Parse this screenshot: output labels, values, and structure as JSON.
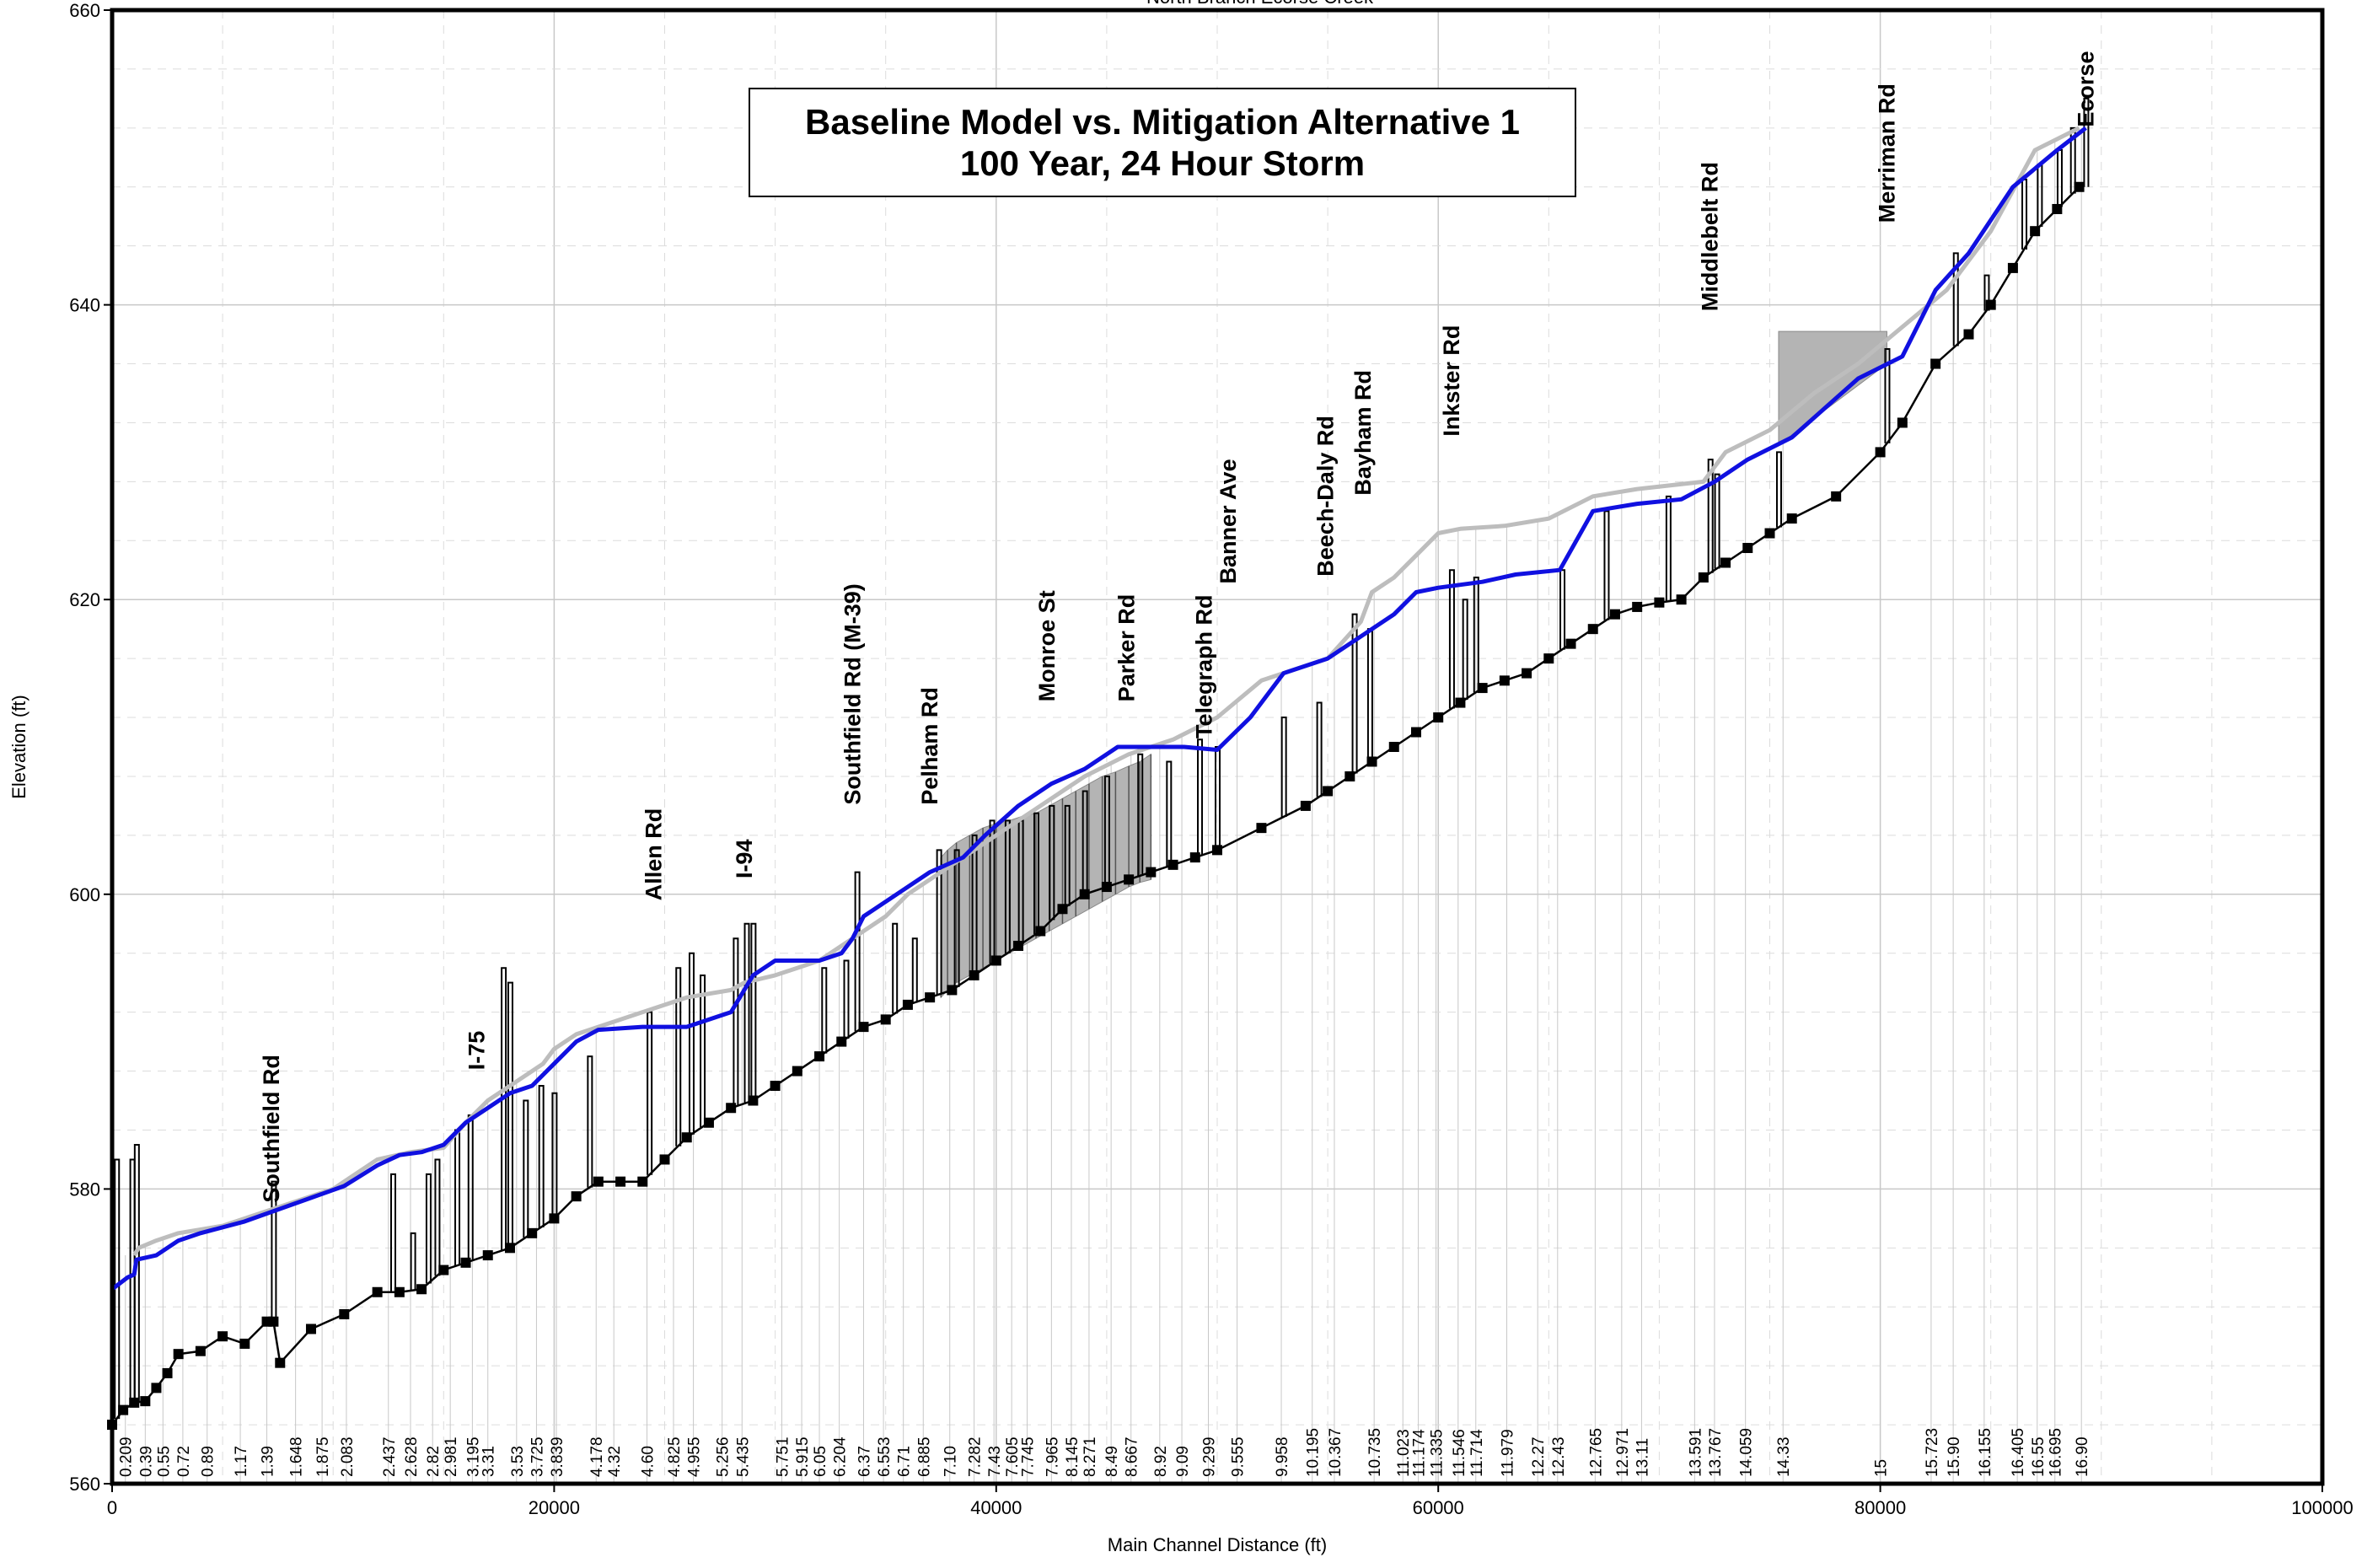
{
  "chart_data": {
    "type": "line",
    "cut_title": "North Branch Ecorse Creek",
    "title_lines": [
      "Baseline Model vs. Mitigation Alternative 1",
      "100 Year, 24 Hour Storm"
    ],
    "xlabel": "Main Channel Distance (ft)",
    "ylabel": "Elevation (ft)",
    "xlim": [
      0,
      100000
    ],
    "ylim": [
      560,
      660
    ],
    "x_ticks": [
      "0",
      "20000",
      "40000",
      "60000",
      "80000",
      "100000"
    ],
    "y_ticks": [
      "560",
      "580",
      "600",
      "620",
      "640",
      "660"
    ],
    "grid": true,
    "colors": {
      "baseline": "#bdbdbd",
      "mitigation": "#1010e0",
      "invert": "#000000",
      "fill": "#b4b4b4"
    },
    "series": [
      {
        "key": "baseline",
        "x": [
          1000,
          1200,
          2000,
          3000,
          5000,
          7000,
          8000,
          10000,
          12000,
          13500,
          15000,
          16000,
          17000,
          18500,
          19500,
          20000,
          21000,
          22000,
          24000,
          26000,
          28000,
          28600,
          30000,
          31000,
          32000,
          33500,
          35000,
          36000,
          37500,
          39000,
          40500,
          42000,
          44000,
          46000,
          48000,
          50000,
          52000,
          54000,
          55000,
          56500,
          57000,
          58000,
          59000,
          60000,
          61000,
          63000,
          65000,
          67000,
          69000,
          72000,
          73000,
          75000,
          77000,
          79000,
          81000,
          83000,
          85000,
          87000,
          89000
        ],
        "y": [
          575.5,
          576,
          576.5,
          577,
          577.5,
          578.5,
          579,
          580,
          582,
          582.5,
          582.8,
          584.5,
          586,
          587.5,
          588.5,
          589.5,
          590.5,
          591,
          592,
          593,
          593.5,
          594,
          594.5,
          595,
          595.5,
          597,
          598.5,
          600,
          601.5,
          603,
          604.5,
          606,
          608,
          609.5,
          610.5,
          612,
          614.5,
          615.5,
          616,
          618.5,
          620.5,
          621.5,
          623,
          624.5,
          624.8,
          625,
          625.5,
          627,
          627.5,
          628,
          630,
          631.5,
          634,
          636,
          638.5,
          641,
          645,
          650.5,
          652
        ]
      },
      {
        "key": "mitigation",
        "x": [
          0,
          700,
          1000,
          1100,
          2000,
          3000,
          4000,
          6000,
          7500,
          9000,
          10500,
          12000,
          13000,
          14000,
          15000,
          16000,
          17000,
          18000,
          19000,
          20000,
          21000,
          22000,
          24000,
          26000,
          28000,
          29000,
          30000,
          31000,
          32000,
          33000,
          33500,
          34000,
          34500,
          35500,
          37000,
          38500,
          39500,
          41000,
          42500,
          44000,
          45500,
          47000,
          48500,
          50000,
          51500,
          53000,
          55000,
          56500,
          58000,
          59000,
          60000,
          62000,
          63500,
          65500,
          67000,
          69000,
          71000,
          72500,
          74000,
          76000,
          79000,
          81000,
          82500,
          84000,
          86000,
          88000,
          89300
        ],
        "y": [
          573.2,
          574,
          574.2,
          575.2,
          575.5,
          576.5,
          577,
          577.8,
          578.6,
          579.4,
          580.2,
          581.6,
          582.3,
          582.5,
          583,
          584.5,
          585.5,
          586.5,
          587,
          588.5,
          590,
          590.8,
          591,
          591,
          592,
          594.5,
          595.5,
          595.5,
          595.5,
          596,
          597,
          598.5,
          599,
          600,
          601.5,
          602.5,
          604,
          606,
          607.5,
          608.5,
          610,
          610,
          610,
          609.8,
          612,
          615,
          616,
          617.5,
          619,
          620.5,
          620.8,
          621.2,
          621.7,
          622,
          626,
          626.5,
          626.8,
          628,
          629.5,
          631,
          635,
          636.5,
          641,
          643.5,
          648,
          650.5,
          652
        ]
      },
      {
        "key": "invert",
        "x": [
          0,
          500,
          1000,
          1500,
          2000,
          2500,
          3000,
          4000,
          5000,
          6000,
          7000,
          7300,
          7600,
          9000,
          10500,
          12000,
          13000,
          14000,
          15000,
          16000,
          17000,
          18000,
          19000,
          20000,
          21000,
          22000,
          23000,
          24000,
          25000,
          26000,
          27000,
          28000,
          29000,
          30000,
          31000,
          32000,
          33000,
          34000,
          35000,
          36000,
          37000,
          38000,
          39000,
          40000,
          41000,
          42000,
          43000,
          44000,
          45000,
          46000,
          47000,
          48000,
          49000,
          50000,
          52000,
          54000,
          55000,
          56000,
          57000,
          58000,
          59000,
          60000,
          61000,
          62000,
          63000,
          64000,
          65000,
          66000,
          67000,
          68000,
          69000,
          70000,
          71000,
          72000,
          73000,
          74000,
          75000,
          76000,
          78000,
          80000,
          81000,
          82500,
          84000,
          85000,
          86000,
          87000,
          88000,
          89000
        ],
        "y": [
          564,
          565,
          565.5,
          565.6,
          566.5,
          567.5,
          568.8,
          569,
          570,
          569.5,
          571,
          571,
          568.2,
          570.5,
          571.5,
          573,
          573,
          573.2,
          574.5,
          575,
          575.5,
          576,
          577,
          578,
          579.5,
          580.5,
          580.5,
          580.5,
          582,
          583.5,
          584.5,
          585.5,
          586,
          587,
          588,
          589,
          590,
          591,
          591.5,
          592.5,
          593,
          593.5,
          594.5,
          595.5,
          596.5,
          597.5,
          599,
          600,
          600.5,
          601,
          601.5,
          602,
          602.5,
          603,
          604.5,
          606,
          607,
          608,
          609,
          610,
          611,
          612,
          613,
          614,
          614.5,
          615,
          616,
          617,
          618,
          619,
          619.5,
          619.8,
          620,
          621.5,
          622.5,
          623.5,
          624.5,
          625.5,
          627,
          630,
          632,
          636,
          638,
          640,
          642.5,
          645,
          646.5,
          648
        ]
      }
    ],
    "roads": [
      {
        "label": "Southfield Rd",
        "x": 7200,
        "y_top": 578.5
      },
      {
        "label": "I-75",
        "x": 16500,
        "y_top": 587.5
      },
      {
        "label": "Allen Rd",
        "x": 24500,
        "y_top": 599
      },
      {
        "label": "I-94",
        "x": 28600,
        "y_top": 600.5
      },
      {
        "label": "Southfield Rd (M-39)",
        "x": 33500,
        "y_top": 605.5
      },
      {
        "label": "Pelham Rd",
        "x": 37000,
        "y_top": 605.5
      },
      {
        "label": "Monroe St",
        "x": 42300,
        "y_top": 612.5
      },
      {
        "label": "Parker Rd",
        "x": 45900,
        "y_top": 612.5
      },
      {
        "label": "Telegraph Rd",
        "x": 49400,
        "y_top": 610
      },
      {
        "label": "Banner Ave",
        "x": 50500,
        "y_top": 620.5
      },
      {
        "label": "Beech-Daly Rd",
        "x": 54900,
        "y_top": 621
      },
      {
        "label": "Bayham Rd",
        "x": 56600,
        "y_top": 626.5
      },
      {
        "label": "Inkster Rd",
        "x": 60600,
        "y_top": 630.5
      },
      {
        "label": "Middlebelt Rd",
        "x": 72300,
        "y_top": 639
      },
      {
        "label": "Merriman Rd",
        "x": 80300,
        "y_top": 645
      },
      {
        "label": "Ecorse",
        "x": 89300,
        "y_top": 651.5
      }
    ],
    "station_labels": [
      {
        "label": "0.209",
        "x": 600
      },
      {
        "label": "0.39",
        "x": 1500
      },
      {
        "label": "0.55",
        "x": 2300
      },
      {
        "label": "0.72",
        "x": 3200
      },
      {
        "label": "0.89",
        "x": 4300
      },
      {
        "label": "1.17",
        "x": 5800
      },
      {
        "label": "1.39",
        "x": 7000
      },
      {
        "label": "1.648",
        "x": 8300
      },
      {
        "label": "1.875",
        "x": 9500
      },
      {
        "label": "2.083",
        "x": 10600
      },
      {
        "label": "2.437",
        "x": 12500
      },
      {
        "label": "2.628",
        "x": 13500
      },
      {
        "label": "2.82",
        "x": 14500
      },
      {
        "label": "2.981",
        "x": 15300
      },
      {
        "label": "3.195",
        "x": 16300
      },
      {
        "label": "3.31",
        "x": 17000
      },
      {
        "label": "3.53",
        "x": 18300
      },
      {
        "label": "3.725",
        "x": 19200
      },
      {
        "label": "3.839",
        "x": 20100
      },
      {
        "label": "4.178",
        "x": 21900
      },
      {
        "label": "4.32",
        "x": 22700
      },
      {
        "label": "4.60",
        "x": 24200
      },
      {
        "label": "4.825",
        "x": 25400
      },
      {
        "label": "4.955",
        "x": 26300
      },
      {
        "label": "5.256",
        "x": 27600
      },
      {
        "label": "5.435",
        "x": 28500
      },
      {
        "label": "5.751",
        "x": 30300
      },
      {
        "label": "5.915",
        "x": 31200
      },
      {
        "label": "6.05",
        "x": 32000
      },
      {
        "label": "6.204",
        "x": 32900
      },
      {
        "label": "6.37",
        "x": 34000
      },
      {
        "label": "6.553",
        "x": 34900
      },
      {
        "label": "6.71",
        "x": 35800
      },
      {
        "label": "6.885",
        "x": 36700
      },
      {
        "label": "7.10",
        "x": 37900
      },
      {
        "label": "7.282",
        "x": 39000
      },
      {
        "label": "7.43",
        "x": 39900
      },
      {
        "label": "7.605",
        "x": 40700
      },
      {
        "label": "7.745",
        "x": 41400
      },
      {
        "label": "7.965",
        "x": 42500
      },
      {
        "label": "8.145",
        "x": 43400
      },
      {
        "label": "8.271",
        "x": 44200
      },
      {
        "label": "8.49",
        "x": 45200
      },
      {
        "label": "8.667",
        "x": 46100
      },
      {
        "label": "8.92",
        "x": 47400
      },
      {
        "label": "9.09",
        "x": 48400
      },
      {
        "label": "9.299",
        "x": 49600
      },
      {
        "label": "9.555",
        "x": 50900
      },
      {
        "label": "9.958",
        "x": 52900
      },
      {
        "label": "10.195",
        "x": 54300
      },
      {
        "label": "10.367",
        "x": 55300
      },
      {
        "label": "10.735",
        "x": 57100
      },
      {
        "label": "11.023",
        "x": 58400
      },
      {
        "label": "11.174",
        "x": 59100
      },
      {
        "label": "11.335",
        "x": 59900
      },
      {
        "label": "11.546",
        "x": 60900
      },
      {
        "label": "11.714",
        "x": 61700
      },
      {
        "label": "11.979",
        "x": 63100
      },
      {
        "label": "12.27",
        "x": 64500
      },
      {
        "label": "12.43",
        "x": 65400
      },
      {
        "label": "12.765",
        "x": 67100
      },
      {
        "label": "12.971",
        "x": 68300
      },
      {
        "label": "13.11",
        "x": 69200
      },
      {
        "label": "13.591",
        "x": 71600
      },
      {
        "label": "13.767",
        "x": 72500
      },
      {
        "label": "14.059",
        "x": 73900
      },
      {
        "label": "14.33",
        "x": 75600
      },
      {
        "label": "15",
        "x": 80000
      },
      {
        "label": "15.723",
        "x": 82300
      },
      {
        "label": "15.90",
        "x": 83300
      },
      {
        "label": "16.155",
        "x": 84700
      },
      {
        "label": "16.405",
        "x": 86200
      },
      {
        "label": "16.55",
        "x": 87100
      },
      {
        "label": "16.695",
        "x": 87900
      },
      {
        "label": "16.90",
        "x": 89100
      }
    ],
    "structures": [
      {
        "x": 200,
        "top": 582
      },
      {
        "x": 900,
        "top": 582
      },
      {
        "x": 1100,
        "top": 583
      },
      {
        "x": 7300,
        "top": 580.5
      },
      {
        "x": 12700,
        "top": 581
      },
      {
        "x": 13600,
        "top": 577
      },
      {
        "x": 14300,
        "top": 581
      },
      {
        "x": 14700,
        "top": 582
      },
      {
        "x": 15600,
        "top": 584
      },
      {
        "x": 16200,
        "top": 585
      },
      {
        "x": 17700,
        "top": 595
      },
      {
        "x": 18000,
        "top": 594
      },
      {
        "x": 18700,
        "top": 586
      },
      {
        "x": 19400,
        "top": 587
      },
      {
        "x": 20000,
        "top": 586.5
      },
      {
        "x": 21600,
        "top": 589
      },
      {
        "x": 24300,
        "top": 592
      },
      {
        "x": 25600,
        "top": 595
      },
      {
        "x": 26200,
        "top": 596
      },
      {
        "x": 26700,
        "top": 594.5
      },
      {
        "x": 28200,
        "top": 597
      },
      {
        "x": 28700,
        "top": 598
      },
      {
        "x": 29000,
        "top": 598
      },
      {
        "x": 32200,
        "top": 595
      },
      {
        "x": 33200,
        "top": 595.5
      },
      {
        "x": 33700,
        "top": 601.5
      },
      {
        "x": 35400,
        "top": 598
      },
      {
        "x": 36300,
        "top": 597
      },
      {
        "x": 37400,
        "top": 603
      },
      {
        "x": 38200,
        "top": 603
      },
      {
        "x": 39000,
        "top": 604
      },
      {
        "x": 39800,
        "top": 605
      },
      {
        "x": 40500,
        "top": 605
      },
      {
        "x": 41100,
        "top": 605
      },
      {
        "x": 41800,
        "top": 605.5
      },
      {
        "x": 42500,
        "top": 606
      },
      {
        "x": 43200,
        "top": 606
      },
      {
        "x": 44000,
        "top": 607
      },
      {
        "x": 45000,
        "top": 608
      },
      {
        "x": 46500,
        "top": 609.5
      },
      {
        "x": 47800,
        "top": 609
      },
      {
        "x": 49200,
        "top": 610.5
      },
      {
        "x": 50000,
        "top": 610
      },
      {
        "x": 53000,
        "top": 612
      },
      {
        "x": 54600,
        "top": 613
      },
      {
        "x": 56200,
        "top": 619
      },
      {
        "x": 56900,
        "top": 618
      },
      {
        "x": 60600,
        "top": 622
      },
      {
        "x": 61200,
        "top": 620
      },
      {
        "x": 61700,
        "top": 621.5
      },
      {
        "x": 65600,
        "top": 622
      },
      {
        "x": 67600,
        "top": 626
      },
      {
        "x": 70400,
        "top": 627
      },
      {
        "x": 72300,
        "top": 629.5
      },
      {
        "x": 72600,
        "top": 628.5
      },
      {
        "x": 75400,
        "top": 630
      },
      {
        "x": 80300,
        "top": 637
      },
      {
        "x": 83400,
        "top": 643.5
      },
      {
        "x": 84800,
        "top": 642
      },
      {
        "x": 86500,
        "top": 648.5
      },
      {
        "x": 87200,
        "top": 649.5
      },
      {
        "x": 88100,
        "top": 650.5
      },
      {
        "x": 88700,
        "top": 652
      },
      {
        "x": 89300,
        "top": 654
      }
    ],
    "fill_regions": [
      {
        "x": [
          37500,
          37800,
          38200,
          38800,
          39400,
          40000,
          40600,
          41200,
          41800,
          42400,
          43000,
          43600,
          44200,
          44800,
          45400,
          46000,
          46500,
          47000
        ],
        "top": [
          602.5,
          603,
          603.5,
          604,
          604.5,
          604.8,
          605,
          605.3,
          605.5,
          606,
          606.5,
          607,
          607.5,
          608,
          608.3,
          608.7,
          609,
          609.5
        ],
        "bottom": [
          593,
          593.5,
          594,
          594.5,
          595,
          595.5,
          596,
          596.5,
          597,
          597.5,
          598,
          598.5,
          599,
          599.5,
          600,
          600.5,
          600.8,
          601
        ]
      },
      {
        "x": [
          75400,
          80300,
          80300,
          75400
        ],
        "top": [
          638.2,
          638.2,
          636,
          630.5
        ],
        "bottom": []
      }
    ]
  }
}
